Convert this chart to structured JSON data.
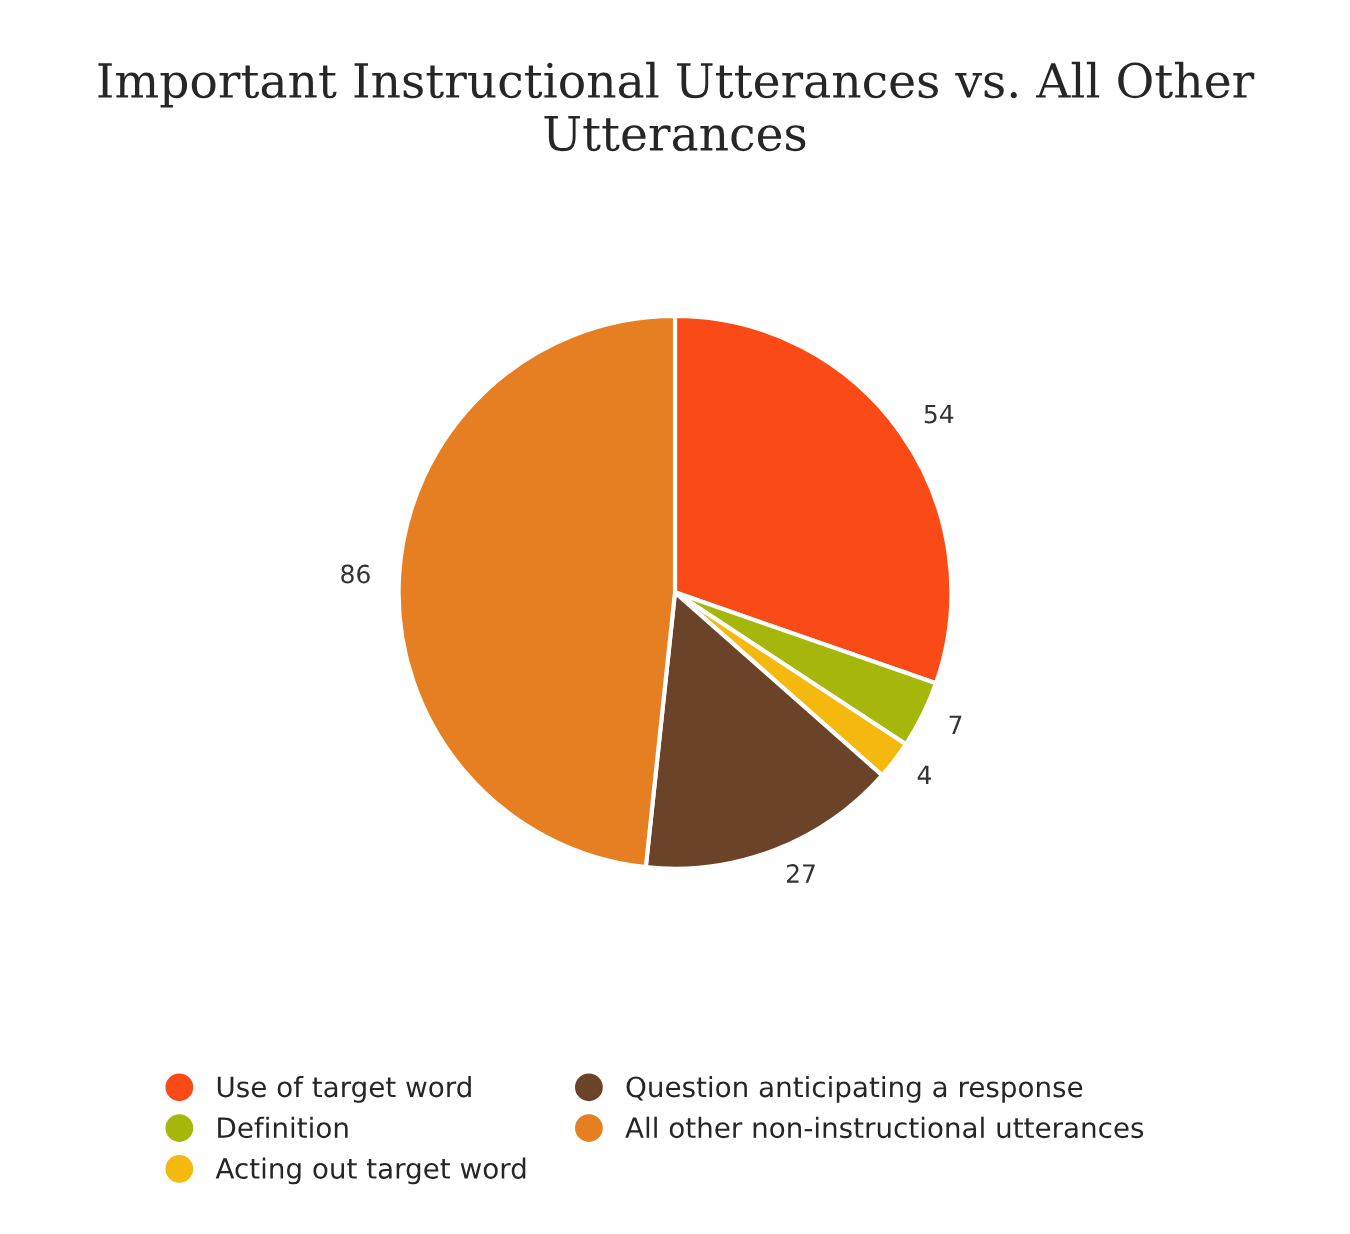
{
  "chart_data": {
    "type": "pie",
    "title": "Important Instructional Utterances vs. All Other Utterances",
    "categories": [
      "Use of target word",
      "Definition",
      "Acting out target word",
      "Question anticipating a response",
      "All other non-instructional utterances"
    ],
    "values": [
      54,
      7,
      4,
      27,
      86
    ],
    "colors": [
      "#fa4b16",
      "#a5b70a",
      "#f5b80f",
      "#6b4329",
      "#e67e22"
    ],
    "data_labels": true,
    "legend": "bottom"
  }
}
